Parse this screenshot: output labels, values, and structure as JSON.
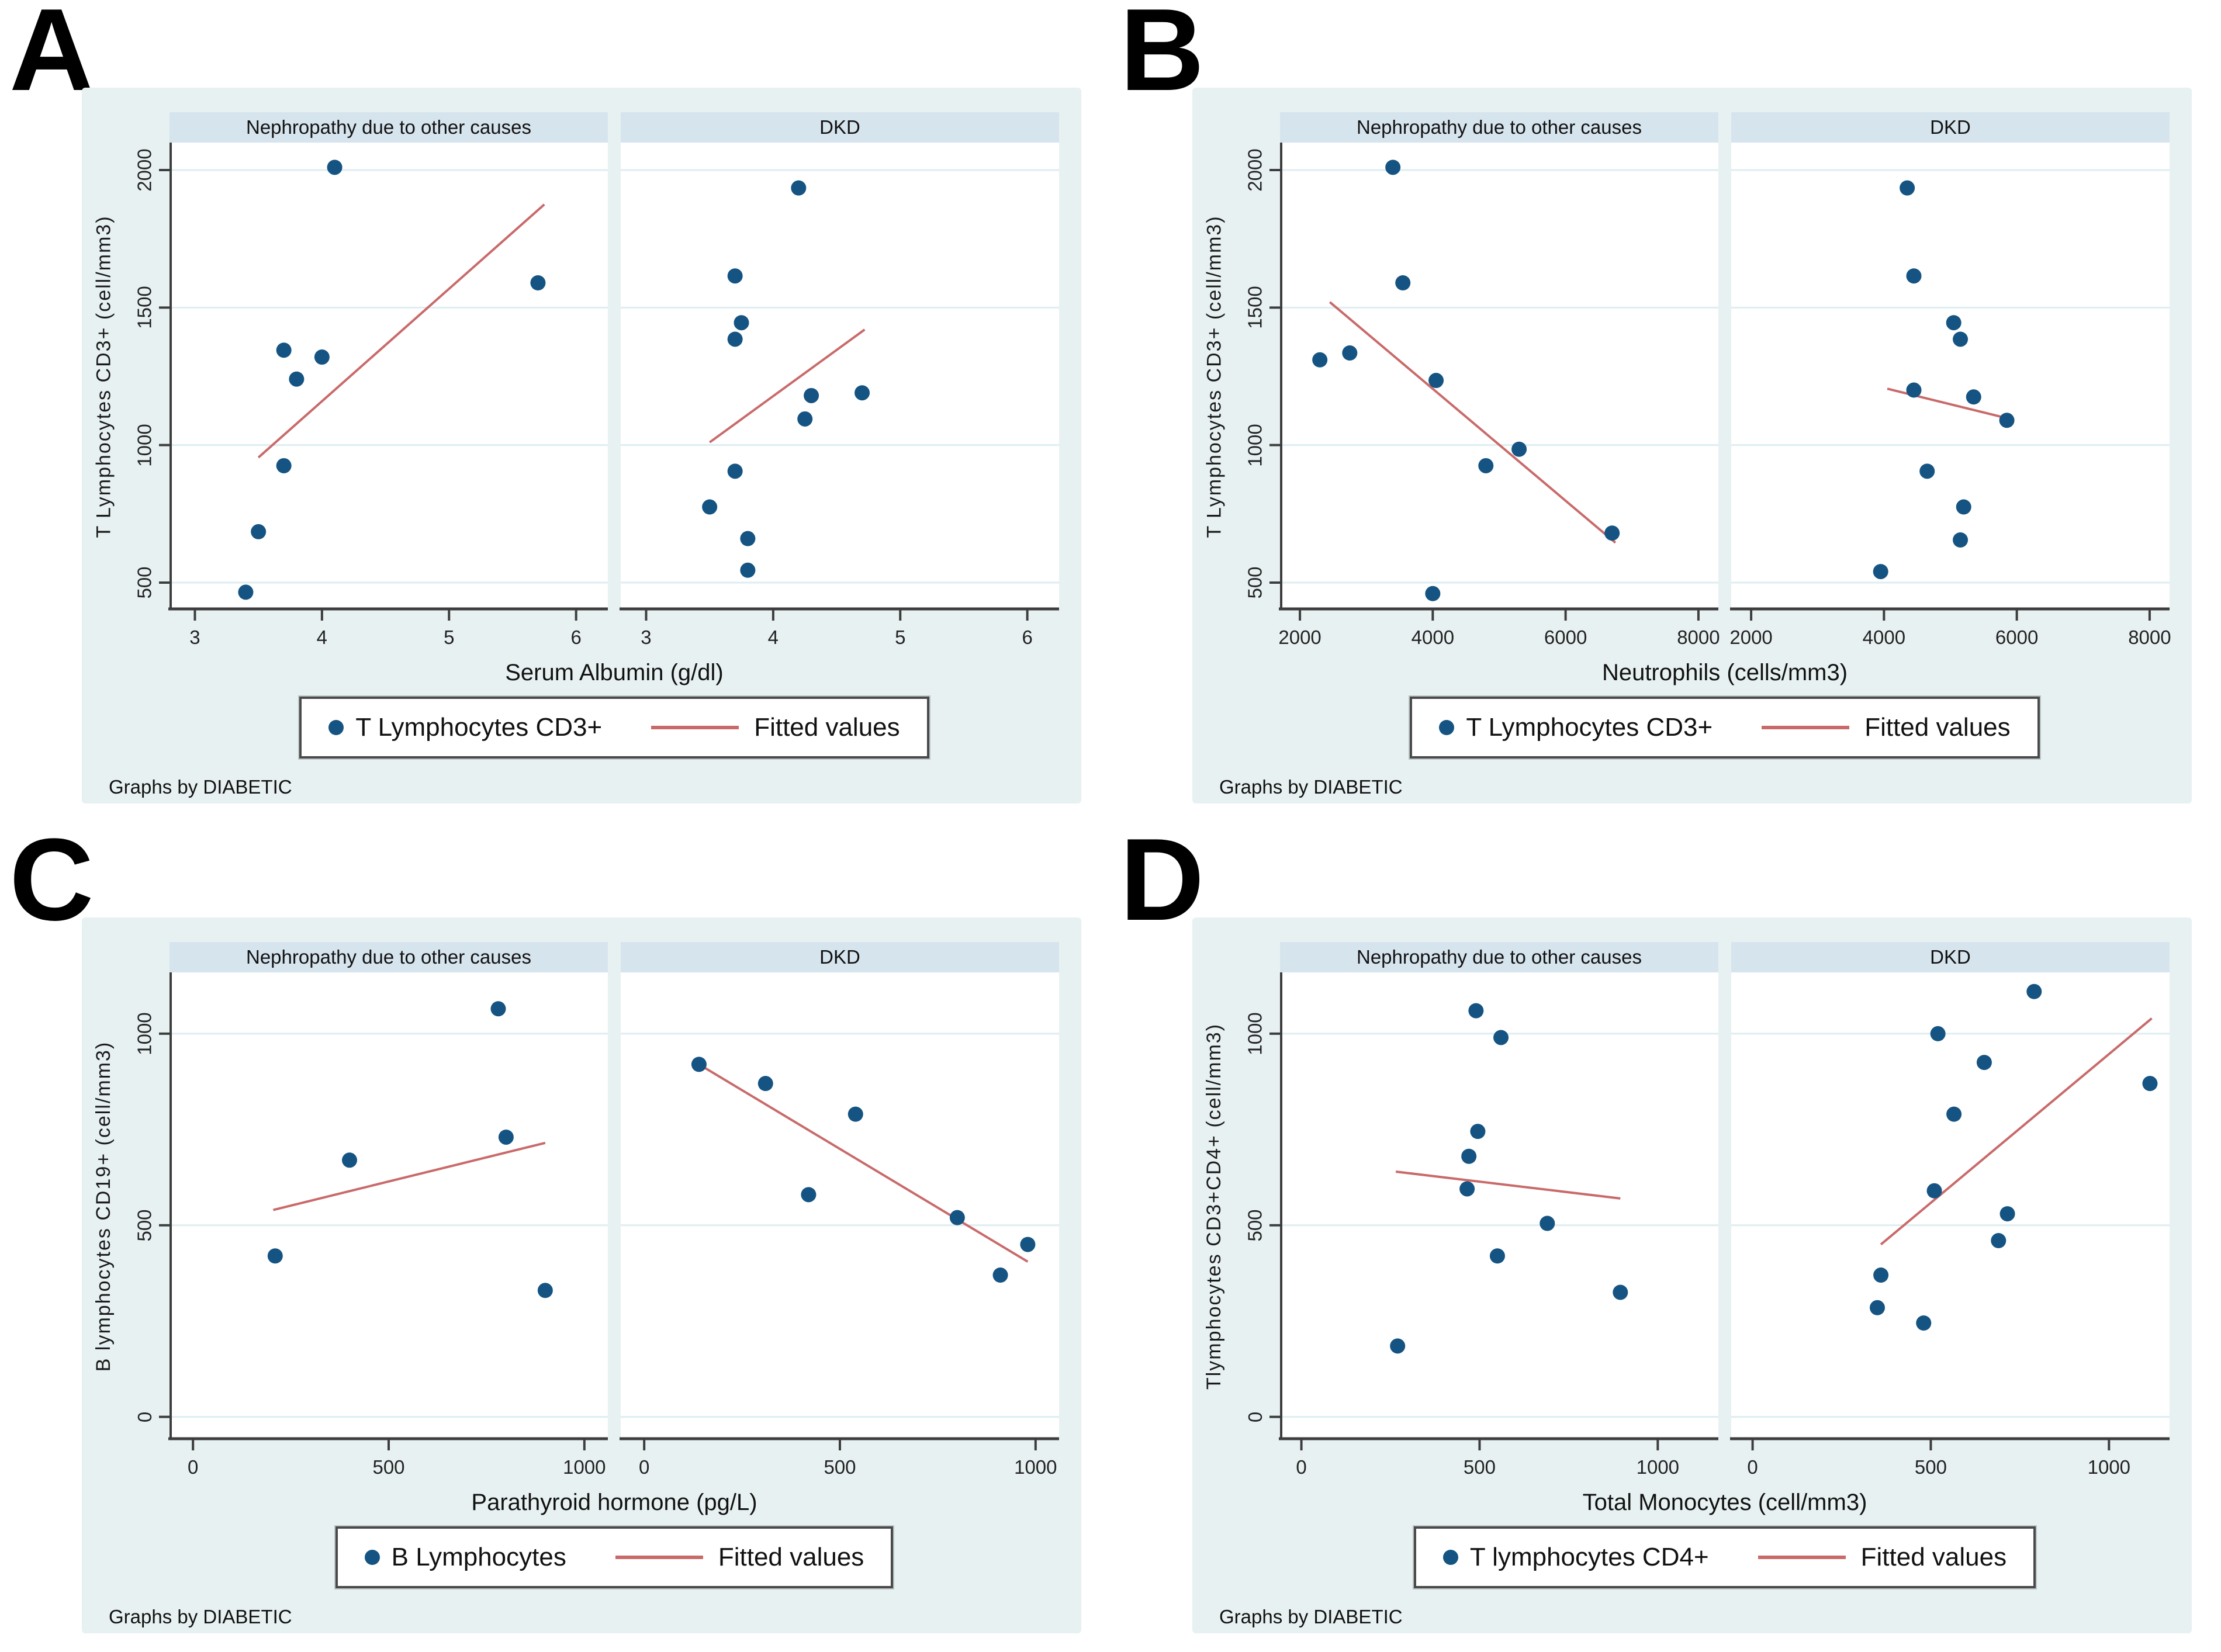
{
  "colors": {
    "figure_bg": "#e8f1f2",
    "strip_bg": "#d6e4ee",
    "plot_bg": "#ffffff",
    "grid": "#ddeef2",
    "axis": "#3d3d3d",
    "marker": "#155482",
    "fit_line": "#c96a6a"
  },
  "chart_data": [
    {
      "type": "scatter",
      "panel_letter": "A",
      "xlabel": "Serum Albumin (g/dl)",
      "ylabel": "T Lymphocytes CD3+ (cell/mm3)",
      "legend": {
        "marker_label": "T Lymphocytes CD3+",
        "line_label": "Fitted values",
        "position": "bottom-center"
      },
      "note": "Graphs by DIABETIC",
      "xlim": [
        2.8,
        6.25
      ],
      "ylim": [
        400,
        2100
      ],
      "xticks": [
        3,
        4,
        5,
        6
      ],
      "yticks": [
        500,
        1000,
        1500,
        2000
      ],
      "grid": "horizontal",
      "subplots": [
        {
          "title": "Nephropathy due to other causes",
          "points": [
            [
              3.4,
              465
            ],
            [
              3.5,
              685
            ],
            [
              3.7,
              925
            ],
            [
              3.7,
              1345
            ],
            [
              3.8,
              1240
            ],
            [
              4.0,
              1320
            ],
            [
              4.1,
              2010
            ],
            [
              5.7,
              1590
            ]
          ],
          "fit_line": [
            [
              3.5,
              955
            ],
            [
              5.75,
              1875
            ]
          ]
        },
        {
          "title": "DKD",
          "points": [
            [
              3.5,
              775
            ],
            [
              3.7,
              905
            ],
            [
              3.7,
              1385
            ],
            [
              3.75,
              1445
            ],
            [
              3.7,
              1615
            ],
            [
              3.8,
              660
            ],
            [
              3.8,
              545
            ],
            [
              4.2,
              1935
            ],
            [
              4.25,
              1095
            ],
            [
              4.3,
              1180
            ],
            [
              4.7,
              1190
            ]
          ],
          "fit_line": [
            [
              3.5,
              1010
            ],
            [
              4.72,
              1420
            ]
          ]
        }
      ]
    },
    {
      "type": "scatter",
      "panel_letter": "B",
      "xlabel": "Neutrophils (cells/mm3)",
      "ylabel": "T Lymphocytes CD3+ (cell/mm3)",
      "legend": {
        "marker_label": "T Lymphocytes CD3+",
        "line_label": "Fitted values",
        "position": "bottom-center"
      },
      "note": "Graphs by DIABETIC",
      "xlim": [
        1700,
        8300
      ],
      "ylim": [
        400,
        2100
      ],
      "xticks": [
        2000,
        4000,
        6000,
        8000
      ],
      "yticks": [
        500,
        1000,
        1500,
        2000
      ],
      "grid": "horizontal",
      "subplots": [
        {
          "title": "Nephropathy due to other causes",
          "points": [
            [
              2300,
              1310
            ],
            [
              2750,
              1335
            ],
            [
              3400,
              2010
            ],
            [
              3550,
              1590
            ],
            [
              4000,
              460
            ],
            [
              4050,
              1235
            ],
            [
              4800,
              925
            ],
            [
              5300,
              985
            ],
            [
              6700,
              680
            ]
          ],
          "fit_line": [
            [
              2450,
              1520
            ],
            [
              6750,
              645
            ]
          ]
        },
        {
          "title": "DKD",
          "points": [
            [
              3950,
              540
            ],
            [
              4350,
              1935
            ],
            [
              4450,
              1615
            ],
            [
              4450,
              1200
            ],
            [
              4650,
              905
            ],
            [
              5050,
              1445
            ],
            [
              5150,
              1385
            ],
            [
              5150,
              655
            ],
            [
              5200,
              775
            ],
            [
              5350,
              1175
            ],
            [
              5850,
              1090
            ]
          ],
          "fit_line": [
            [
              4050,
              1205
            ],
            [
              5900,
              1095
            ]
          ]
        }
      ]
    },
    {
      "type": "scatter",
      "panel_letter": "C",
      "xlabel": "Parathyroid hormone (pg/L)",
      "ylabel": "B lymphocytes CD19+ (cell/mm3)",
      "legend": {
        "marker_label": "B Lymphocytes",
        "line_label": "Fitted values",
        "position": "bottom-center"
      },
      "note": "Graphs by DIABETIC",
      "xlim": [
        -60,
        1060
      ],
      "ylim": [
        -60,
        1160
      ],
      "xticks": [
        0,
        500,
        1000
      ],
      "yticks": [
        0,
        500,
        1000
      ],
      "grid": "horizontal",
      "subplots": [
        {
          "title": "Nephropathy due to other causes",
          "points": [
            [
              210,
              420
            ],
            [
              400,
              670
            ],
            [
              780,
              1065
            ],
            [
              800,
              730
            ],
            [
              900,
              330
            ]
          ],
          "fit_line": [
            [
              205,
              540
            ],
            [
              900,
              715
            ]
          ]
        },
        {
          "title": "DKD",
          "points": [
            [
              140,
              920
            ],
            [
              310,
              870
            ],
            [
              420,
              580
            ],
            [
              540,
              790
            ],
            [
              800,
              520
            ],
            [
              910,
              370
            ],
            [
              980,
              450
            ]
          ],
          "fit_line": [
            [
              140,
              920
            ],
            [
              980,
              405
            ]
          ]
        }
      ]
    },
    {
      "type": "scatter",
      "panel_letter": "D",
      "xlabel": "Total Monocytes (cell/mm3)",
      "ylabel": "Tlymphocytes CD3+CD4+ (cell/mm3)",
      "legend": {
        "marker_label": "T lymphocytes CD4+",
        "line_label": "Fitted values",
        "position": "bottom-center"
      },
      "note": "Graphs by DIABETIC",
      "xlim": [
        -60,
        1170
      ],
      "ylim": [
        -60,
        1160
      ],
      "xticks": [
        0,
        500,
        1000
      ],
      "yticks": [
        0,
        500,
        1000
      ],
      "grid": "horizontal",
      "subplots": [
        {
          "title": "Nephropathy due to other causes",
          "points": [
            [
              270,
              185
            ],
            [
              465,
              595
            ],
            [
              470,
              680
            ],
            [
              490,
              1060
            ],
            [
              495,
              745
            ],
            [
              550,
              420
            ],
            [
              560,
              990
            ],
            [
              690,
              505
            ],
            [
              895,
              325
            ]
          ],
          "fit_line": [
            [
              265,
              640
            ],
            [
              895,
              570
            ]
          ]
        },
        {
          "title": "DKD",
          "points": [
            [
              350,
              285
            ],
            [
              360,
              370
            ],
            [
              480,
              245
            ],
            [
              510,
              590
            ],
            [
              520,
              1000
            ],
            [
              565,
              790
            ],
            [
              650,
              925
            ],
            [
              690,
              460
            ],
            [
              715,
              530
            ],
            [
              790,
              1110
            ],
            [
              1115,
              870
            ]
          ],
          "fit_line": [
            [
              360,
              450
            ],
            [
              1120,
              1040
            ]
          ]
        }
      ]
    }
  ]
}
